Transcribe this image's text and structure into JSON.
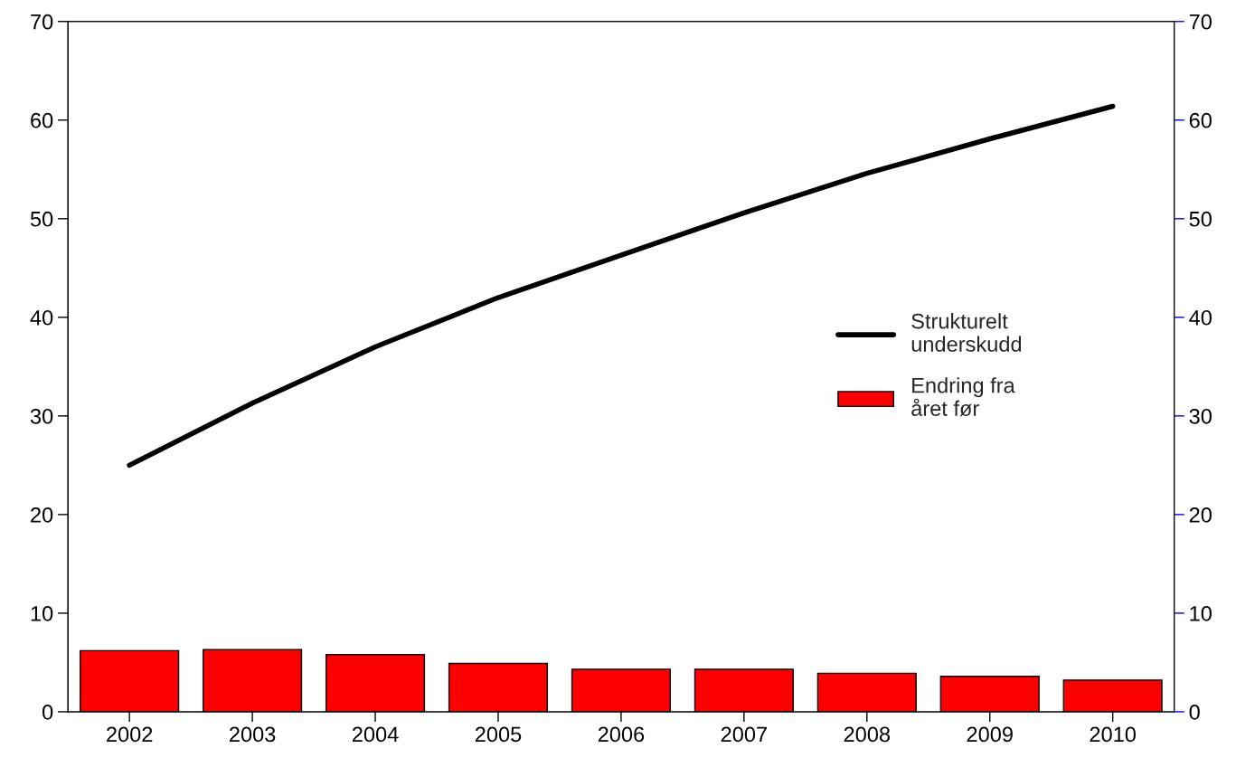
{
  "chart_data": {
    "type": "bar",
    "categories": [
      "2002",
      "2003",
      "2004",
      "2005",
      "2006",
      "2007",
      "2008",
      "2009",
      "2010"
    ],
    "series": [
      {
        "name": "Strukturelt\nunderskudd",
        "type": "line",
        "color": "#000000",
        "values": [
          25.0,
          31.3,
          37.0,
          42.0,
          46.3,
          50.6,
          54.6,
          58.1,
          61.4
        ]
      },
      {
        "name": "Endring fra\nåret før",
        "color": "#ff0000",
        "values": [
          6.2,
          6.3,
          5.8,
          4.9,
          4.3,
          4.3,
          3.9,
          3.6,
          3.2
        ]
      }
    ],
    "ylim": [
      0,
      70
    ],
    "yticks": [
      0,
      10,
      20,
      30,
      40,
      50,
      60,
      70
    ],
    "y2lim": [
      0,
      70
    ],
    "y2ticks": [
      0,
      10,
      20,
      30,
      40,
      50,
      60,
      70
    ],
    "grid": false,
    "legend": "center right"
  }
}
